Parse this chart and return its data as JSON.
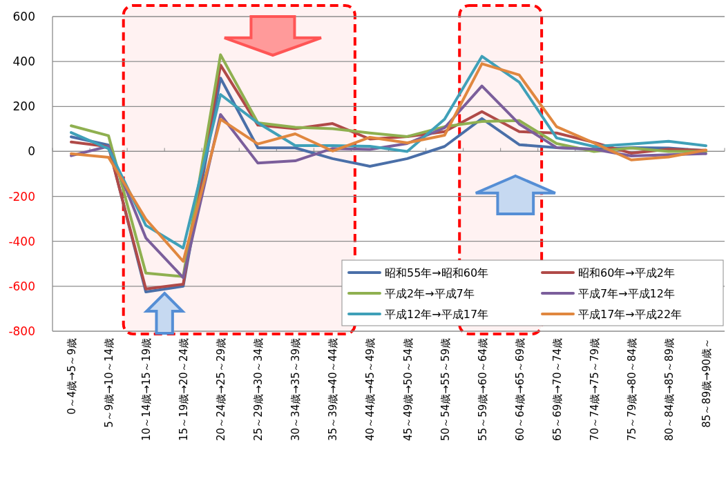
{
  "chart_data": {
    "type": "line",
    "categories": [
      "0～4歳→5～9歳",
      "5～9歳→10～14歳",
      "10～14歳→15～19歳",
      "15～19歳→20～24歳",
      "20～24歳→25～29歳",
      "25～29歳→30～34歳",
      "30～34歳→35～39歳",
      "35～39歳→40～44歳",
      "40～44歳→45～49歳",
      "45～49歳→50～54歳",
      "50～54歳→55～59歳",
      "55～59歳→60～64歳",
      "60～64歳→65～69歳",
      "65～69歳→70～74歳",
      "70～74歳→75～79歳",
      "75～79歳→80～84歳",
      "80～84歳→85～89歳",
      "85～89歳→90歳～"
    ],
    "series": [
      {
        "name": "昭和55年→昭和60年",
        "color": "#4a6fa8",
        "values": [
          65,
          28,
          -625,
          -600,
          326,
          16,
          16,
          -32,
          -66,
          -32,
          22,
          146,
          30,
          17,
          10,
          17,
          15,
          3
        ]
      },
      {
        "name": "昭和60年→平成2年",
        "color": "#b04a48",
        "values": [
          42,
          21,
          -612,
          -591,
          384,
          117,
          101,
          124,
          55,
          66,
          88,
          177,
          88,
          82,
          40,
          -8,
          10,
          5
        ]
      },
      {
        "name": "平成2年→平成7年",
        "color": "#8fb050",
        "values": [
          114,
          70,
          -541,
          -557,
          430,
          127,
          107,
          101,
          82,
          66,
          110,
          133,
          137,
          35,
          0,
          15,
          0,
          0
        ]
      },
      {
        "name": "平成7年→平成12年",
        "color": "#7b5e9b",
        "values": [
          -19,
          23,
          -385,
          -562,
          164,
          -52,
          -42,
          13,
          9,
          35,
          105,
          291,
          122,
          17,
          10,
          -20,
          -15,
          -10
        ]
      },
      {
        "name": "平成12年→平成17年",
        "color": "#3fa0b8",
        "values": [
          84,
          12,
          -329,
          -430,
          253,
          127,
          26,
          26,
          23,
          0,
          143,
          423,
          308,
          60,
          22,
          33,
          45,
          25
        ]
      },
      {
        "name": "平成17年→平成22年",
        "color": "#e0873f",
        "values": [
          -10,
          -26,
          -301,
          -489,
          143,
          33,
          78,
          2,
          63,
          38,
          72,
          390,
          340,
          110,
          38,
          -38,
          -25,
          6
        ]
      }
    ],
    "ylim": [
      -800,
      600
    ],
    "yticks": [
      -800,
      -600,
      -400,
      -200,
      0,
      200,
      400,
      600
    ],
    "grid": "y",
    "legend": "bottom right",
    "bands": [
      {
        "axis": "x",
        "from": "10～14歳→15～19歳",
        "to": "35～39歳→40～44歳",
        "color": "#ff0000"
      },
      {
        "axis": "x",
        "from": "55～59歳→60～64歳",
        "to": "60～64歳→65～69歳",
        "color": "#ff0000"
      }
    ]
  }
}
